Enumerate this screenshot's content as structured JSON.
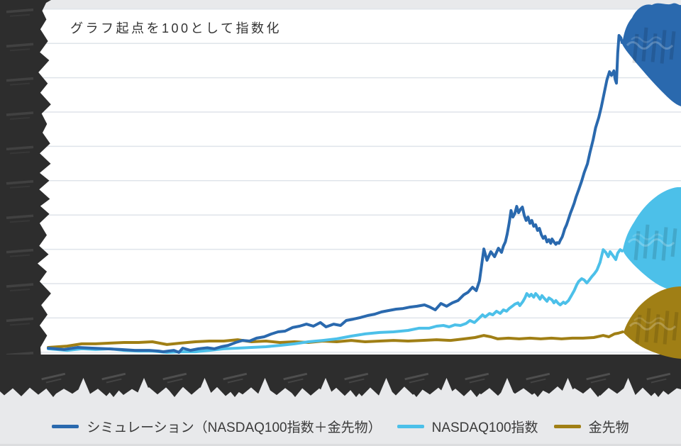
{
  "chart": {
    "annotation": "グラフ起点を100として指数化",
    "plot_bg": "#ffffff",
    "outer_bg": "#e8e9eb",
    "gridline_color": "#dfe4ea",
    "redaction_color": "#2d2d2d",
    "redaction_note": "y-axis tick labels, x-axis date tick labels and the value labels at each line end are obscured by dark scribble marks"
  },
  "legend": {
    "items": [
      {
        "id": "simulation",
        "label": "シミュレーション（NASDAQ100指数＋金先物）",
        "color": "#2a69ae"
      },
      {
        "id": "nasdaq100",
        "label": "NASDAQ100指数",
        "color": "#4cc0e9"
      },
      {
        "id": "gold",
        "label": "金先物",
        "color": "#a07f15"
      }
    ]
  },
  "chart_data": {
    "type": "line",
    "title": "グラフ起点を100として指数化",
    "indexed_base": 100,
    "grid": "horizontal only",
    "y_axis": {
      "tick_labels": "redacted (scribbled over)",
      "gridline_count": 11,
      "estimated_units_per_gridline": 200,
      "estimated_range": [
        0,
        2100
      ]
    },
    "x_axis": {
      "tick_labels": "redacted (scribbled over, rotated date-like strings)",
      "tick_count": 11
    },
    "legend_position": "bottom center",
    "series": [
      {
        "name": "シミュレーション（NASDAQ100指数＋金先物）",
        "color": "#2a69ae",
        "end_label": "redacted",
        "points": [
          [
            0,
            96
          ],
          [
            0.025,
            88
          ],
          [
            0.047,
            100
          ],
          [
            0.07,
            96
          ],
          [
            0.092,
            92
          ],
          [
            0.115,
            88
          ],
          [
            0.137,
            83
          ],
          [
            0.16,
            83
          ],
          [
            0.175,
            79
          ],
          [
            0.182,
            75
          ],
          [
            0.19,
            79
          ],
          [
            0.199,
            83
          ],
          [
            0.207,
            71
          ],
          [
            0.213,
            96
          ],
          [
            0.225,
            83
          ],
          [
            0.238,
            92
          ],
          [
            0.252,
            98
          ],
          [
            0.263,
            92
          ],
          [
            0.274,
            104
          ],
          [
            0.285,
            112
          ],
          [
            0.297,
            129
          ],
          [
            0.308,
            141
          ],
          [
            0.319,
            137
          ],
          [
            0.33,
            154
          ],
          [
            0.342,
            162
          ],
          [
            0.353,
            178
          ],
          [
            0.364,
            191
          ],
          [
            0.375,
            195
          ],
          [
            0.387,
            216
          ],
          [
            0.398,
            224
          ],
          [
            0.409,
            236
          ],
          [
            0.42,
            224
          ],
          [
            0.431,
            245
          ],
          [
            0.44,
            220
          ],
          [
            0.452,
            236
          ],
          [
            0.463,
            228
          ],
          [
            0.472,
            257
          ],
          [
            0.483,
            265
          ],
          [
            0.494,
            274
          ],
          [
            0.506,
            286
          ],
          [
            0.517,
            294
          ],
          [
            0.528,
            307
          ],
          [
            0.539,
            315
          ],
          [
            0.551,
            323
          ],
          [
            0.562,
            327
          ],
          [
            0.573,
            335
          ],
          [
            0.584,
            340
          ],
          [
            0.596,
            348
          ],
          [
            0.604,
            336
          ],
          [
            0.613,
            319
          ],
          [
            0.622,
            356
          ],
          [
            0.631,
            340
          ],
          [
            0.64,
            360
          ],
          [
            0.649,
            373
          ],
          [
            0.658,
            406
          ],
          [
            0.665,
            422
          ],
          [
            0.672,
            451
          ],
          [
            0.678,
            431
          ],
          [
            0.683,
            488
          ],
          [
            0.69,
            674
          ],
          [
            0.695,
            608
          ],
          [
            0.701,
            658
          ],
          [
            0.707,
            629
          ],
          [
            0.713,
            678
          ],
          [
            0.718,
            654
          ],
          [
            0.721,
            691
          ],
          [
            0.724,
            715
          ],
          [
            0.727,
            761
          ],
          [
            0.73,
            823
          ],
          [
            0.733,
            898
          ],
          [
            0.736,
            860
          ],
          [
            0.739,
            880
          ],
          [
            0.742,
            922
          ],
          [
            0.745,
            885
          ],
          [
            0.748,
            905
          ],
          [
            0.751,
            918
          ],
          [
            0.754,
            869
          ],
          [
            0.757,
            840
          ],
          [
            0.76,
            860
          ],
          [
            0.763,
            823
          ],
          [
            0.766,
            840
          ],
          [
            0.769,
            806
          ],
          [
            0.772,
            815
          ],
          [
            0.775,
            782
          ],
          [
            0.778,
            794
          ],
          [
            0.781,
            757
          ],
          [
            0.784,
            736
          ],
          [
            0.787,
            748
          ],
          [
            0.79,
            715
          ],
          [
            0.793,
            728
          ],
          [
            0.796,
            707
          ],
          [
            0.798,
            732
          ],
          [
            0.801,
            715
          ],
          [
            0.804,
            701
          ],
          [
            0.806,
            711
          ],
          [
            0.809,
            707
          ],
          [
            0.811,
            724
          ],
          [
            0.814,
            744
          ],
          [
            0.816,
            765
          ],
          [
            0.818,
            790
          ],
          [
            0.821,
            815
          ],
          [
            0.824,
            848
          ],
          [
            0.827,
            881
          ],
          [
            0.83,
            910
          ],
          [
            0.833,
            940
          ],
          [
            0.836,
            976
          ],
          [
            0.84,
            1017
          ],
          [
            0.845,
            1070
          ],
          [
            0.849,
            1120
          ],
          [
            0.854,
            1170
          ],
          [
            0.858,
            1235
          ],
          [
            0.863,
            1310
          ],
          [
            0.867,
            1380
          ],
          [
            0.872,
            1440
          ],
          [
            0.876,
            1500
          ],
          [
            0.881,
            1590
          ],
          [
            0.885,
            1660
          ],
          [
            0.889,
            1707
          ],
          [
            0.892,
            1685
          ],
          [
            0.896,
            1712
          ],
          [
            0.898,
            1662
          ],
          [
            0.9,
            1640
          ],
          [
            0.902,
            1815
          ],
          [
            0.904,
            1918
          ],
          [
            0.907,
            1905
          ],
          [
            0.909,
            1877
          ]
        ]
      },
      {
        "name": "NASDAQ100指数",
        "color": "#4cc0e9",
        "end_label": "redacted",
        "points": [
          [
            0,
            92
          ],
          [
            0.03,
            83
          ],
          [
            0.053,
            92
          ],
          [
            0.075,
            88
          ],
          [
            0.098,
            92
          ],
          [
            0.12,
            83
          ],
          [
            0.143,
            79
          ],
          [
            0.165,
            79
          ],
          [
            0.188,
            71
          ],
          [
            0.21,
            75
          ],
          [
            0.233,
            75
          ],
          [
            0.255,
            83
          ],
          [
            0.278,
            92
          ],
          [
            0.3,
            96
          ],
          [
            0.322,
            100
          ],
          [
            0.345,
            104
          ],
          [
            0.367,
            112
          ],
          [
            0.39,
            121
          ],
          [
            0.412,
            133
          ],
          [
            0.435,
            141
          ],
          [
            0.457,
            150
          ],
          [
            0.48,
            166
          ],
          [
            0.502,
            179
          ],
          [
            0.525,
            187
          ],
          [
            0.547,
            191
          ],
          [
            0.57,
            199
          ],
          [
            0.587,
            212
          ],
          [
            0.603,
            212
          ],
          [
            0.615,
            224
          ],
          [
            0.626,
            228
          ],
          [
            0.635,
            220
          ],
          [
            0.644,
            232
          ],
          [
            0.653,
            228
          ],
          [
            0.662,
            240
          ],
          [
            0.668,
            257
          ],
          [
            0.675,
            245
          ],
          [
            0.682,
            269
          ],
          [
            0.688,
            290
          ],
          [
            0.692,
            278
          ],
          [
            0.699,
            298
          ],
          [
            0.704,
            290
          ],
          [
            0.71,
            311
          ],
          [
            0.716,
            298
          ],
          [
            0.721,
            319
          ],
          [
            0.726,
            311
          ],
          [
            0.73,
            327
          ],
          [
            0.735,
            340
          ],
          [
            0.739,
            352
          ],
          [
            0.744,
            360
          ],
          [
            0.747,
            344
          ],
          [
            0.752,
            369
          ],
          [
            0.755,
            389
          ],
          [
            0.758,
            414
          ],
          [
            0.762,
            398
          ],
          [
            0.765,
            410
          ],
          [
            0.769,
            393
          ],
          [
            0.772,
            414
          ],
          [
            0.775,
            402
          ],
          [
            0.779,
            381
          ],
          [
            0.782,
            402
          ],
          [
            0.786,
            385
          ],
          [
            0.79,
            369
          ],
          [
            0.793,
            389
          ],
          [
            0.798,
            377
          ],
          [
            0.801,
            360
          ],
          [
            0.804,
            373
          ],
          [
            0.808,
            356
          ],
          [
            0.811,
            348
          ],
          [
            0.816,
            364
          ],
          [
            0.819,
            356
          ],
          [
            0.824,
            373
          ],
          [
            0.828,
            398
          ],
          [
            0.833,
            431
          ],
          [
            0.837,
            464
          ],
          [
            0.84,
            484
          ],
          [
            0.845,
            501
          ],
          [
            0.849,
            493
          ],
          [
            0.853,
            476
          ],
          [
            0.856,
            488
          ],
          [
            0.861,
            513
          ],
          [
            0.865,
            530
          ],
          [
            0.869,
            550
          ],
          [
            0.874,
            596
          ],
          [
            0.879,
            670
          ],
          [
            0.883,
            654
          ],
          [
            0.887,
            629
          ],
          [
            0.89,
            658
          ],
          [
            0.894,
            637
          ],
          [
            0.899,
            612
          ],
          [
            0.902,
            650
          ],
          [
            0.906,
            670
          ],
          [
            0.909,
            662
          ]
        ]
      },
      {
        "name": "金先物",
        "color": "#a07f15",
        "end_label": "redacted",
        "points": [
          [
            0,
            100
          ],
          [
            0.03,
            108
          ],
          [
            0.053,
            121
          ],
          [
            0.075,
            121
          ],
          [
            0.098,
            125
          ],
          [
            0.12,
            129
          ],
          [
            0.143,
            129
          ],
          [
            0.165,
            133
          ],
          [
            0.188,
            117
          ],
          [
            0.21,
            125
          ],
          [
            0.233,
            133
          ],
          [
            0.255,
            137
          ],
          [
            0.278,
            137
          ],
          [
            0.3,
            145
          ],
          [
            0.322,
            133
          ],
          [
            0.345,
            137
          ],
          [
            0.367,
            129
          ],
          [
            0.39,
            133
          ],
          [
            0.412,
            129
          ],
          [
            0.435,
            137
          ],
          [
            0.457,
            133
          ],
          [
            0.48,
            141
          ],
          [
            0.502,
            133
          ],
          [
            0.525,
            137
          ],
          [
            0.547,
            141
          ],
          [
            0.57,
            137
          ],
          [
            0.592,
            141
          ],
          [
            0.615,
            145
          ],
          [
            0.637,
            141
          ],
          [
            0.659,
            150
          ],
          [
            0.676,
            158
          ],
          [
            0.69,
            170
          ],
          [
            0.701,
            162
          ],
          [
            0.712,
            150
          ],
          [
            0.729,
            154
          ],
          [
            0.746,
            150
          ],
          [
            0.763,
            154
          ],
          [
            0.78,
            150
          ],
          [
            0.797,
            154
          ],
          [
            0.813,
            150
          ],
          [
            0.83,
            154
          ],
          [
            0.847,
            154
          ],
          [
            0.864,
            158
          ],
          [
            0.879,
            170
          ],
          [
            0.888,
            162
          ],
          [
            0.897,
            179
          ],
          [
            0.903,
            183
          ],
          [
            0.91,
            191
          ]
        ]
      }
    ]
  }
}
